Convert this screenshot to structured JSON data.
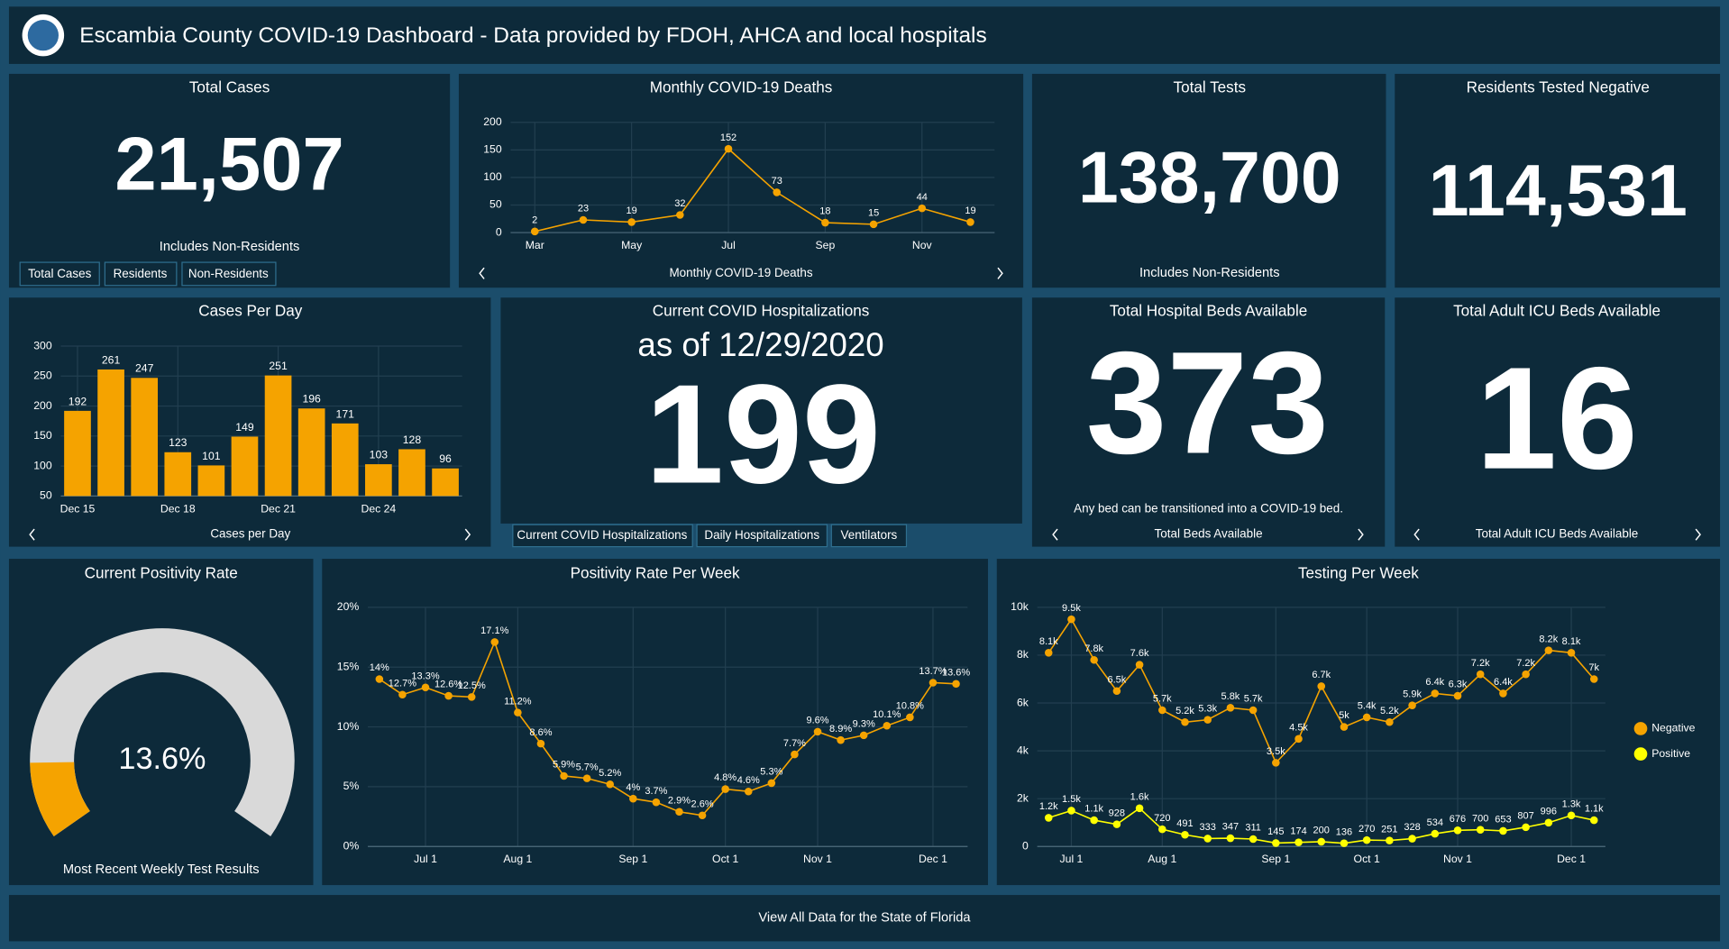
{
  "header": {
    "title": "Escambia County COVID-19 Dashboard - Data provided by FDOH, AHCA and local hospitals"
  },
  "indicators": {
    "total_cases": {
      "title": "Total Cases",
      "value": "21,507",
      "note": "Includes Non-Residents",
      "tabs": [
        "Total Cases",
        "Residents",
        "Non-Residents"
      ]
    },
    "total_tests": {
      "title": "Total Tests",
      "value": "138,700",
      "note": "Includes Non-Residents"
    },
    "tested_negative": {
      "title": "Residents Tested Negative",
      "value": "114,531"
    },
    "hospitalizations": {
      "title": "Current COVID Hospitalizations",
      "subtitle": "as of 12/29/2020",
      "value": "199",
      "tabs": [
        "Current COVID Hospitalizations",
        "Daily Hospitalizations",
        "Ventilators"
      ]
    },
    "beds": {
      "title": "Total Hospital Beds Available",
      "value": "373",
      "note": "Any bed can be transitioned into a COVID-19 bed.",
      "footer": "Total Beds Available"
    },
    "icu": {
      "title": "Total Adult ICU Beds Available",
      "value": "16",
      "footer": "Total Adult ICU Beds Available"
    }
  },
  "chart_data": [
    {
      "type": "line",
      "title": "Monthly COVID-19 Deaths",
      "footer": "Monthly COVID-19 Deaths",
      "color": "#f5a300",
      "categories": [
        "Mar",
        null,
        "May",
        null,
        "Jul",
        null,
        "Sep",
        null,
        "Nov",
        null
      ],
      "values": [
        2,
        23,
        19,
        32,
        152,
        73,
        18,
        15,
        44,
        19
      ],
      "ylim": [
        0,
        200
      ],
      "yticks": [
        0,
        50,
        100,
        150,
        200
      ],
      "grid": true
    },
    {
      "type": "bar",
      "title": "Cases Per Day",
      "footer": "Cases per Day",
      "color": "#f5a300",
      "categories": [
        "Dec 15",
        null,
        null,
        "Dec 18",
        null,
        null,
        "Dec 21",
        null,
        null,
        "Dec 24",
        null,
        null
      ],
      "values": [
        192,
        261,
        247,
        123,
        101,
        149,
        251,
        196,
        171,
        103,
        128,
        96
      ],
      "ylim": [
        50,
        300
      ],
      "yticks": [
        50,
        100,
        150,
        200,
        250,
        300
      ],
      "grid": true
    },
    {
      "type": "gauge",
      "title": "Current Positivity Rate",
      "caption": "Most Recent Weekly Test Results",
      "value": 13.6,
      "value_label": "13.6%",
      "range": [
        0,
        100
      ],
      "color": "#f5a300",
      "track_color": "#d9d9d9"
    },
    {
      "type": "line",
      "title": "Positivity Rate Per Week",
      "color": "#f5a300",
      "categories": [
        null,
        null,
        "Jul 1",
        null,
        null,
        null,
        "Aug 1",
        null,
        null,
        null,
        null,
        "Sep 1",
        null,
        null,
        null,
        "Oct 1",
        null,
        null,
        null,
        "Nov 1",
        null,
        null,
        null,
        null,
        "Dec 1",
        null
      ],
      "values": [
        14,
        12.7,
        13.3,
        12.6,
        12.5,
        17.1,
        11.2,
        8.6,
        5.9,
        5.7,
        5.2,
        4,
        3.7,
        2.9,
        2.6,
        4.8,
        4.6,
        5.3,
        7.7,
        9.6,
        8.9,
        9.3,
        10.1,
        10.8,
        13.7,
        13.6
      ],
      "value_labels": [
        "14%",
        "12.7%",
        "13.3%",
        "12.6%",
        "12.5%",
        "17.1%",
        "11.2%",
        "8.6%",
        "5.9%",
        "5.7%",
        "5.2%",
        "4%",
        "3.7%",
        "2.9%",
        "2.6%",
        "4.8%",
        "4.6%",
        "5.3%",
        "7.7%",
        "9.6%",
        "8.9%",
        "9.3%",
        "10.1%",
        "10.8%",
        "13.7%",
        "13.6%"
      ],
      "ylim": [
        0,
        20
      ],
      "yticks": [
        {
          "value": 0,
          "label": "0%"
        },
        {
          "value": 5,
          "label": "5%"
        },
        {
          "value": 10,
          "label": "10%"
        },
        {
          "value": 15,
          "label": "15%"
        },
        {
          "value": 20,
          "label": "20%"
        }
      ],
      "grid": true
    },
    {
      "type": "line",
      "title": "Testing Per Week",
      "legend": "right",
      "categories": [
        null,
        "Jul 1",
        null,
        null,
        null,
        "Aug 1",
        null,
        null,
        null,
        null,
        "Sep 1",
        null,
        null,
        null,
        "Oct 1",
        null,
        null,
        null,
        "Nov 1",
        null,
        null,
        null,
        null,
        "Dec 1",
        null
      ],
      "series": [
        {
          "name": "Negative",
          "color": "#f5a300",
          "values": [
            8100,
            9500,
            7800,
            6500,
            7600,
            5700,
            5200,
            5300,
            5800,
            5700,
            3500,
            4500,
            6700,
            5000,
            5400,
            5200,
            5900,
            6400,
            6300,
            7200,
            6400,
            7200,
            8200,
            8100,
            7000
          ],
          "value_labels": [
            "8.1k",
            "9.5k",
            "7.8k",
            "6.5k",
            "7.6k",
            "5.7k",
            "5.2k",
            "5.3k",
            "5.8k",
            "5.7k",
            "3.5k",
            "4.5k",
            "6.7k",
            "5k",
            "5.4k",
            "5.2k",
            "5.9k",
            "6.4k",
            "6.3k",
            "7.2k",
            "6.4k",
            "7.2k",
            "8.2k",
            "8.1k",
            "7k"
          ]
        },
        {
          "name": "Positive",
          "color": "#ffff00",
          "values": [
            1200,
            1500,
            1100,
            928,
            1600,
            720,
            491,
            333,
            347,
            311,
            145,
            174,
            200,
            136,
            270,
            251,
            328,
            534,
            676,
            700,
            653,
            807,
            996,
            1300,
            1100
          ],
          "value_labels": [
            "1.2k",
            "1.5k",
            "1.1k",
            "928",
            "1.6k",
            "720",
            "491",
            "333",
            "347",
            "311",
            "145",
            "174",
            "200",
            "136",
            "270",
            "251",
            "328",
            "534",
            "676",
            "700",
            "653",
            "807",
            "996",
            "1.3k",
            "1.1k"
          ]
        }
      ],
      "ylim": [
        0,
        10000
      ],
      "yticks": [
        0,
        {
          "value": 2000,
          "label": "2k"
        },
        {
          "value": 4000,
          "label": "4k"
        },
        {
          "value": 6000,
          "label": "6k"
        },
        {
          "value": 8000,
          "label": "8k"
        },
        {
          "value": 10000,
          "label": "10k"
        }
      ],
      "grid": true
    }
  ],
  "footer": {
    "link": "View All Data for the State of Florida"
  }
}
